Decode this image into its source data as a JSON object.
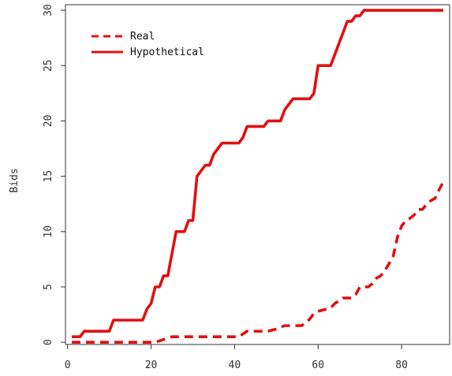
{
  "chart_data": {
    "type": "line",
    "title": "",
    "xlabel": "",
    "ylabel": "Bids",
    "xlim": [
      -0.5,
      91.5
    ],
    "ylim": [
      -0.2,
      30.5
    ],
    "xticks": [
      0,
      20,
      40,
      60,
      80
    ],
    "yticks": [
      0,
      5,
      10,
      15,
      20,
      25,
      30
    ],
    "x_tick_labels": [
      "0",
      "20",
      "40",
      "60",
      "80"
    ],
    "y_tick_labels": [
      "0",
      "5",
      "10",
      "15",
      "20",
      "25",
      "30"
    ],
    "grid": false,
    "legend_position": "top-left",
    "series": [
      {
        "name": "Real",
        "style": "dashed",
        "color": "#e01010",
        "x": [
          1,
          9,
          20,
          21,
          25,
          35,
          41,
          43,
          48,
          50,
          52,
          55,
          56,
          57,
          58,
          59,
          60,
          61,
          62,
          63,
          64,
          66,
          68,
          69,
          70,
          72,
          73,
          74,
          75,
          76,
          77,
          78,
          79,
          80,
          81,
          82,
          83,
          84,
          85,
          86,
          87,
          88,
          89,
          90
        ],
        "y": [
          0,
          0,
          0,
          0,
          0.5,
          0.5,
          0.5,
          1,
          1,
          1.2,
          1.5,
          1.5,
          1.5,
          1.7,
          2.1,
          2.6,
          2.8,
          2.9,
          3,
          3.1,
          3.5,
          4,
          4,
          4.3,
          5,
          5,
          5.3,
          5.8,
          6,
          6.5,
          7.1,
          7.8,
          9.5,
          10.5,
          11,
          11.2,
          11.5,
          12,
          12,
          12.5,
          12.8,
          13,
          13.8,
          14.5
        ]
      },
      {
        "name": "Hypothetical",
        "style": "solid",
        "color": "#e01010",
        "x": [
          1,
          3,
          4,
          10,
          11,
          18,
          19,
          20,
          21,
          22,
          23,
          24,
          25,
          26,
          27,
          28,
          29,
          30,
          31,
          32,
          33,
          34,
          35,
          36,
          37,
          38,
          39,
          40,
          41,
          42,
          43,
          44,
          45,
          46,
          47,
          48,
          49,
          50,
          51,
          52,
          53,
          54,
          55,
          56,
          57,
          58,
          59,
          60,
          61,
          62,
          63,
          64,
          65,
          66,
          67,
          68,
          69,
          70,
          71,
          72,
          80,
          90
        ],
        "y": [
          0.5,
          0.5,
          1,
          1,
          2,
          2,
          3,
          3.5,
          5,
          5,
          6,
          6,
          8,
          10,
          10,
          10,
          11,
          11,
          15,
          15.5,
          16,
          16,
          17,
          17.5,
          18,
          18,
          18,
          18,
          18,
          18.5,
          19.5,
          19.5,
          19.5,
          19.5,
          19.5,
          20,
          20,
          20,
          20,
          21,
          21.5,
          22,
          22,
          22,
          22,
          22,
          22.5,
          25,
          25,
          25,
          25,
          26,
          27,
          28,
          29,
          29,
          29.5,
          29.5,
          30,
          30,
          30,
          30
        ]
      }
    ]
  },
  "colors": {
    "line": "#e01010",
    "axis": "#333333",
    "background": "#ffffff"
  }
}
